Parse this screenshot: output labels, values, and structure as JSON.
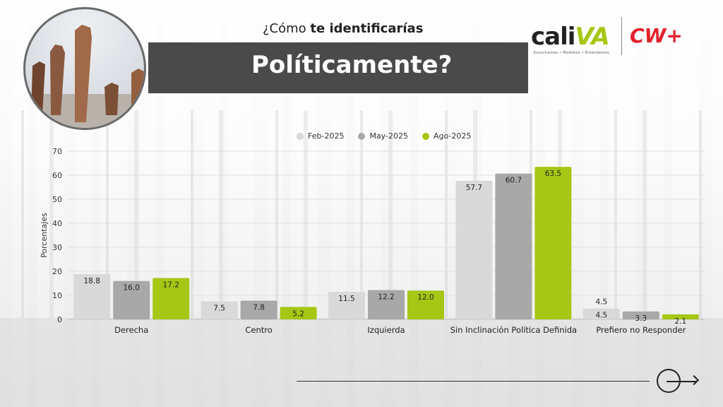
{
  "header": {
    "subtitle_prefix": "¿Cómo ",
    "subtitle_bold": "te identificarías",
    "title": "Políticamente?"
  },
  "logos": {
    "caliva_text_1": "cali",
    "caliva_text_2": "VA",
    "caliva_tagline": "Escuchamos • Medimos • Entendemos",
    "cw_text": "CW+"
  },
  "colors": {
    "feb": "#d9d9d9",
    "may": "#a8a8a8",
    "ago": "#a6c713",
    "title_bar": "#4a4a4a"
  },
  "chart_data": {
    "type": "bar",
    "title": "",
    "xlabel": "",
    "ylabel": "Porcentajes",
    "ylim": [
      0,
      70
    ],
    "yticks": [
      0,
      10,
      20,
      30,
      40,
      50,
      60,
      70
    ],
    "grid": true,
    "legend_position": "top",
    "categories": [
      "Derecha",
      "Centro",
      "Izquierda",
      "Sin Inclinación Política Definida",
      "Prefiero no Responder"
    ],
    "series": [
      {
        "name": "Feb-2025",
        "color": "#d9d9d9",
        "values": [
          18.8,
          7.5,
          11.5,
          57.7,
          4.5
        ]
      },
      {
        "name": "May-2025",
        "color": "#a8a8a8",
        "values": [
          16.0,
          7.8,
          12.2,
          60.7,
          3.3
        ]
      },
      {
        "name": "Ago-2025",
        "color": "#a6c713",
        "values": [
          17.2,
          5.2,
          12.0,
          63.5,
          2.1
        ]
      }
    ],
    "extra_label": {
      "category_index": 4,
      "series_index": 0,
      "text": "4.5"
    }
  }
}
